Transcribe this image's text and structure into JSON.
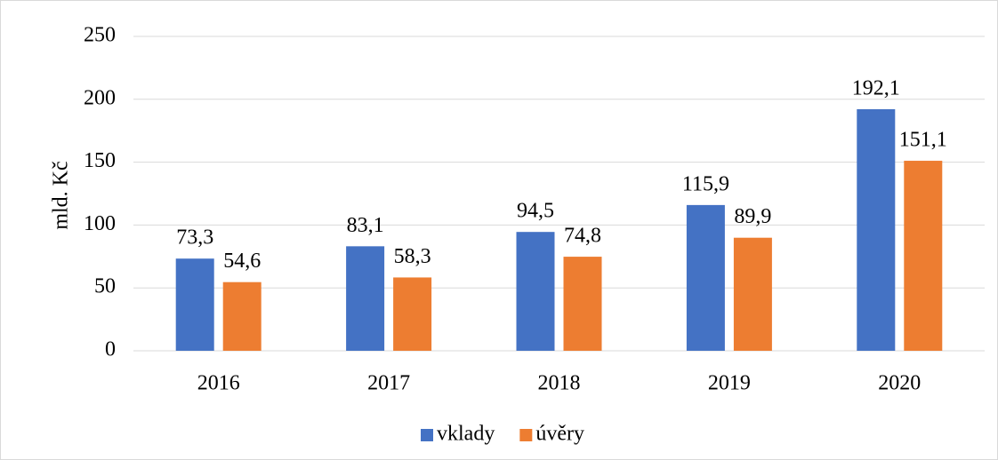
{
  "chart_data": {
    "type": "bar",
    "y_label": "mld. Kč",
    "categories": [
      "2016",
      "2017",
      "2018",
      "2019",
      "2020"
    ],
    "series": [
      {
        "name": "vklady",
        "color": "#4472c4",
        "values": [
          73.3,
          83.1,
          94.5,
          115.9,
          192.1
        ],
        "value_labels": [
          "73,3",
          "83,1",
          "94,5",
          "115,9",
          "192,1"
        ]
      },
      {
        "name": "úvěry",
        "color": "#ed7d31",
        "values": [
          54.6,
          58.3,
          74.8,
          89.9,
          151.1
        ],
        "value_labels": [
          "54,6",
          "58,3",
          "74,8",
          "89,9",
          "151,1"
        ]
      }
    ],
    "ylim": [
      0,
      250
    ],
    "yticks": [
      0,
      50,
      100,
      150,
      200,
      250
    ],
    "grid": true,
    "legend": "bottom"
  }
}
